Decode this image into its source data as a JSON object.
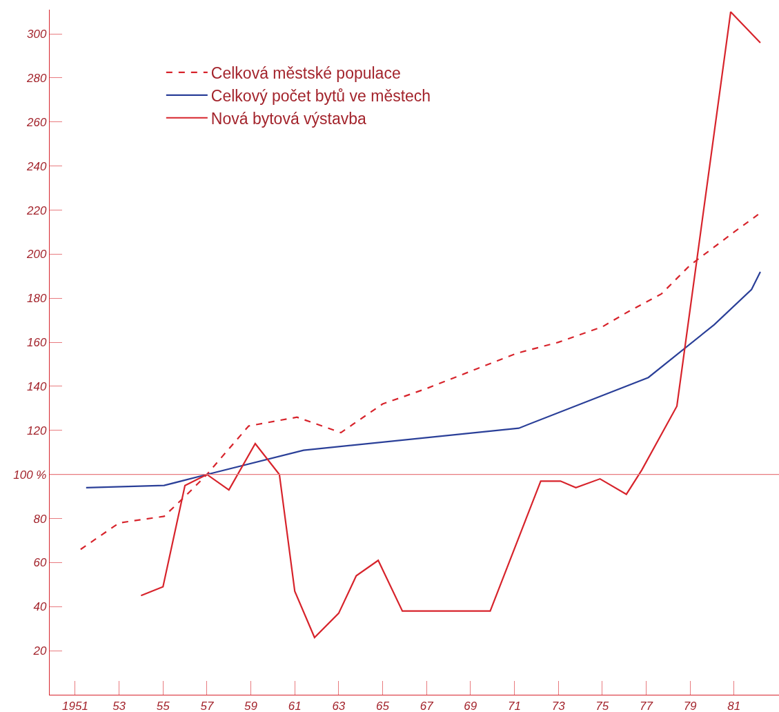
{
  "chart_data": {
    "type": "line",
    "series": [
      {
        "name": "Celková městské populace",
        "color": "#d7232b",
        "line_style": "dashed",
        "x": [
          1951.25,
          1953,
          1955.05,
          1956,
          1957,
          1957.6,
          1958.9,
          1961.1,
          1963.1,
          1965,
          1967,
          1969.3,
          1971.1,
          1973,
          1975,
          1976.2,
          1977.7,
          1979,
          1981,
          1982.1
        ],
        "values": [
          66,
          78,
          81,
          90,
          100,
          107,
          122,
          126,
          119,
          132,
          139,
          148,
          155,
          160,
          167,
          174,
          182,
          195,
          210,
          218
        ]
      },
      {
        "name": "Celkový počet bytů ve městech",
        "color": "#2a3f98",
        "line_style": "solid",
        "x": [
          1951.5,
          1955.05,
          1957,
          1961.4,
          1971.2,
          1977.1,
          1980.1,
          1981.8,
          1982.2
        ],
        "values": [
          94,
          95,
          100,
          111,
          121,
          144,
          168,
          184,
          192
        ]
      },
      {
        "name": "Nová bytová výstavba",
        "color": "#d7232b",
        "line_style": "solid",
        "x": [
          1954,
          1955,
          1956,
          1957,
          1958,
          1959.2,
          1960.3,
          1961,
          1961.9,
          1963,
          1963.8,
          1964.8,
          1965.9,
          1969.9,
          1972.2,
          1973.1,
          1973.8,
          1974.9,
          1976.1,
          1976.8,
          1978.4,
          1980.85,
          1982.2
        ],
        "values": [
          45,
          49,
          95,
          100,
          93,
          114,
          100,
          47,
          26,
          37,
          54,
          61,
          38,
          38,
          97,
          97,
          94,
          98,
          91,
          102,
          131,
          310,
          296
        ]
      }
    ],
    "xlim": [
      1949.84,
      1983.05
    ],
    "xticks": [
      1951,
      {
        "value": 1953,
        "label": "53"
      },
      {
        "value": 1955,
        "label": "55"
      },
      {
        "value": 1957,
        "label": "57"
      },
      {
        "value": 1959,
        "label": "59"
      },
      {
        "value": 1961,
        "label": "61"
      },
      {
        "value": 1963,
        "label": "63"
      },
      {
        "value": 1965,
        "label": "65"
      },
      {
        "value": 1967,
        "label": "67"
      },
      {
        "value": 1969,
        "label": "69"
      },
      {
        "value": 1971,
        "label": "71"
      },
      {
        "value": 1973,
        "label": "73"
      },
      {
        "value": 1975,
        "label": "75"
      },
      {
        "value": 1977,
        "label": "77"
      },
      {
        "value": 1979,
        "label": "79"
      },
      {
        "value": 1981,
        "label": "81"
      }
    ],
    "ylim": [
      0,
      311
    ],
    "yticks": [
      20,
      40,
      60,
      80,
      {
        "value": 100,
        "label": "100 %"
      },
      120,
      140,
      160,
      180,
      200,
      220,
      240,
      260,
      280,
      300
    ],
    "ref_lines": [
      {
        "axis": "y",
        "value": 100,
        "color": "#e87a7e"
      }
    ],
    "legend": "top left",
    "marker": "none"
  }
}
